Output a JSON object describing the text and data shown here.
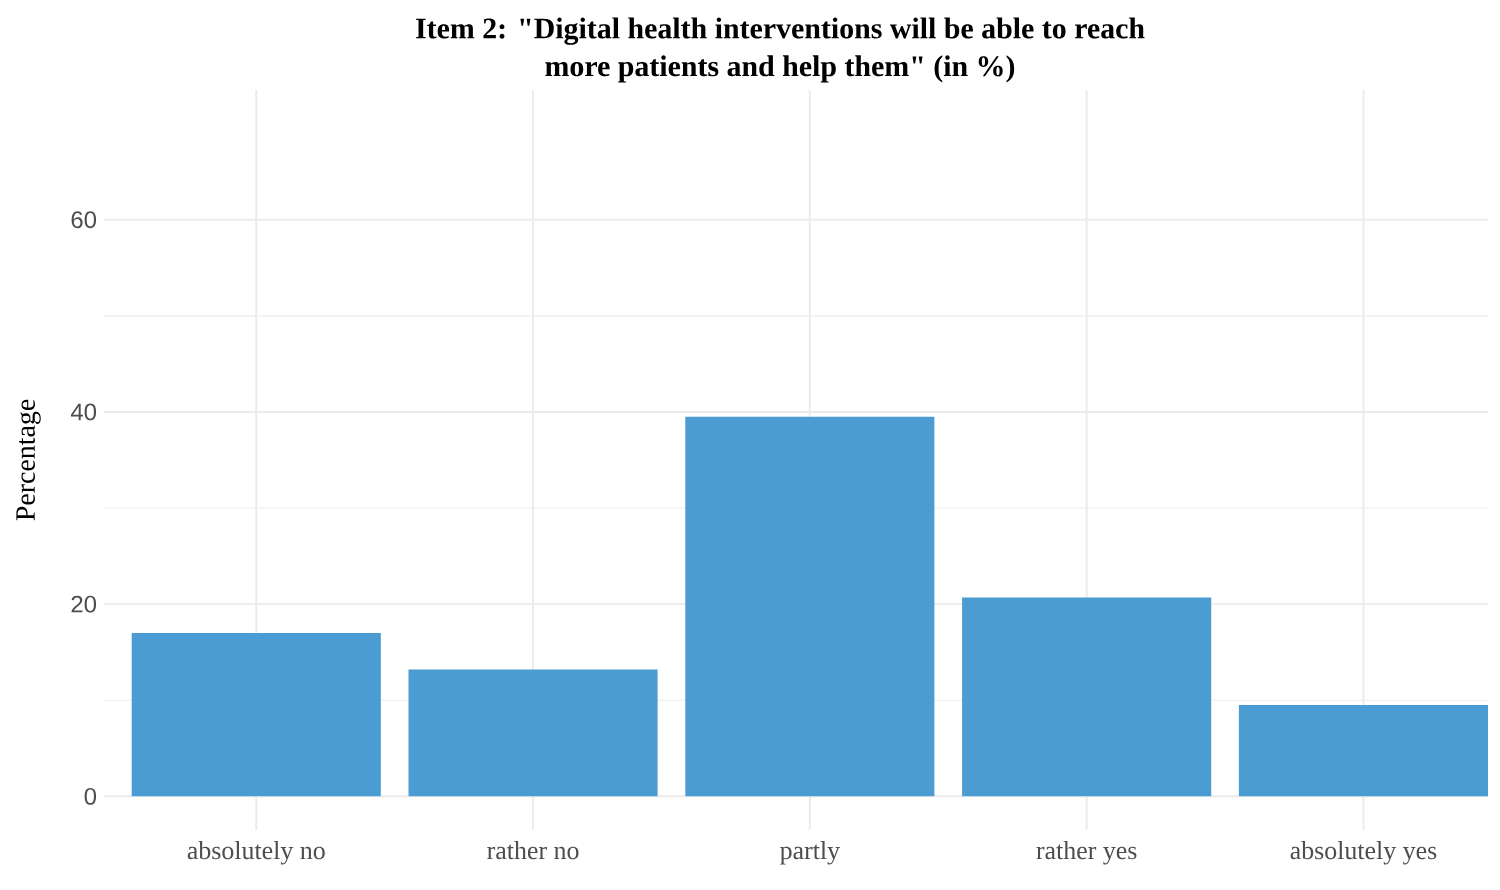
{
  "chart_data": {
    "type": "bar",
    "title": "Item 2: \"Digital health interventions will be able to reach\nmore patients and help them\" (in %)",
    "ylabel": "Percentage",
    "categories": [
      "absolutely no",
      "rather no",
      "partly",
      "rather yes",
      "absolutely yes"
    ],
    "values": [
      17.0,
      13.2,
      39.5,
      20.7,
      9.5
    ],
    "color": "#4b9cd3",
    "ylim": [
      -3.5,
      73.5
    ],
    "yticks": [
      0,
      20,
      40,
      60
    ],
    "grid": true
  }
}
